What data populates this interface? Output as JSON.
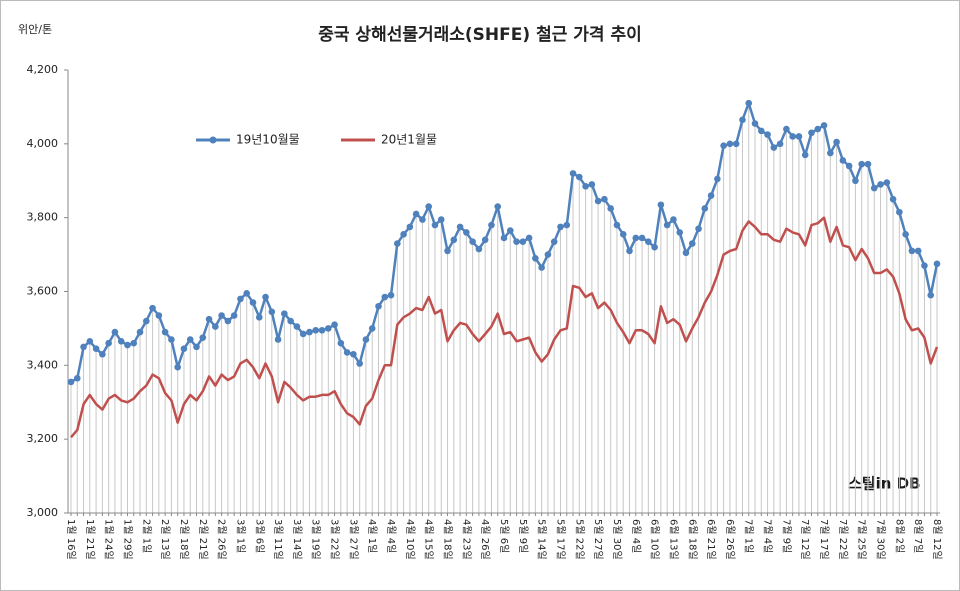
{
  "chart_data": {
    "type": "line",
    "title": "중국 상해선물거래소(SHFE) 철근 가격 추이",
    "y_axis_label": "위안/톤",
    "watermark": "스틸in DB",
    "ylim": [
      3000,
      4200
    ],
    "yticks": [
      {
        "value": 3000,
        "label": "3,000"
      },
      {
        "value": 3200,
        "label": "3,200"
      },
      {
        "value": 3400,
        "label": "3,400"
      },
      {
        "value": 3600,
        "label": "3,600"
      },
      {
        "value": 3800,
        "label": "3,800"
      },
      {
        "value": 4000,
        "label": "4,000"
      },
      {
        "value": 4200,
        "label": "4,200"
      }
    ],
    "drop_lines": true,
    "categories": [
      "1월 16일",
      null,
      null,
      "1월 21일",
      null,
      null,
      "1월 24일",
      null,
      null,
      "1월 29일",
      null,
      null,
      "2월 1일",
      null,
      null,
      "2월 13일",
      null,
      null,
      "2월 18일",
      null,
      null,
      "2월 21일",
      null,
      null,
      "2월 26일",
      null,
      null,
      "3월 1일",
      null,
      null,
      "3월 6일",
      null,
      null,
      "3월 11일",
      null,
      null,
      "3월 14일",
      null,
      null,
      "3월 19일",
      null,
      null,
      "3월 22일",
      null,
      null,
      "3월 27일",
      null,
      null,
      "4월 1일",
      null,
      null,
      "4월 4일",
      null,
      null,
      "4월 10일",
      null,
      null,
      "4월 15일",
      null,
      null,
      "4월 18일",
      null,
      null,
      "4월 23일",
      null,
      null,
      "4월 26일",
      null,
      null,
      "5월 6일",
      null,
      null,
      "5월 9일",
      null,
      null,
      "5월 14일",
      null,
      null,
      "5월 17일",
      null,
      null,
      "5월 22일",
      null,
      null,
      "5월 27일",
      null,
      null,
      "5월 30일",
      null,
      null,
      "6월 4일",
      null,
      null,
      "6월 10일",
      null,
      null,
      "6월 13일",
      null,
      null,
      "6월 18일",
      null,
      null,
      "6월 21일",
      null,
      null,
      "6월 26일",
      null,
      null,
      "7월 1일",
      null,
      null,
      "7월 4일",
      null,
      null,
      "7월 9일",
      null,
      null,
      "7월 12일",
      null,
      null,
      "7월 17일",
      null,
      null,
      "7월 22일",
      null,
      null,
      "7월 25일",
      null,
      null,
      "7월 30일",
      null,
      null,
      "8월 2일",
      null,
      null,
      "8월 7일",
      null,
      null,
      "8월 12일"
    ],
    "series": [
      {
        "name": "19년10월물",
        "color": "#4f81bd",
        "markers": true,
        "values": [
          3355,
          3365,
          3450,
          3465,
          3445,
          3430,
          3460,
          3490,
          3465,
          3455,
          3460,
          3490,
          3520,
          3555,
          3535,
          3490,
          3470,
          3395,
          3445,
          3470,
          3450,
          3475,
          3525,
          3505,
          3535,
          3520,
          3535,
          3580,
          3595,
          3570,
          3530,
          3585,
          3545,
          3470,
          3540,
          3520,
          3505,
          3485,
          3490,
          3495,
          3495,
          3500,
          3510,
          3460,
          3435,
          3430,
          3405,
          3470,
          3500,
          3560,
          3585,
          3590,
          3730,
          3755,
          3775,
          3810,
          3795,
          3830,
          3780,
          3795,
          3710,
          3740,
          3775,
          3760,
          3735,
          3715,
          3740,
          3780,
          3830,
          3745,
          3765,
          3735,
          3735,
          3745,
          3690,
          3665,
          3700,
          3735,
          3775,
          3780,
          3920,
          3910,
          3885,
          3890,
          3845,
          3850,
          3825,
          3780,
          3755,
          3710,
          3745,
          3745,
          3735,
          3720,
          3835,
          3780,
          3795,
          3760,
          3705,
          3730,
          3770,
          3825,
          3860,
          3905,
          3995,
          4000,
          4000,
          4065,
          4110,
          4055,
          4035,
          4025,
          3990,
          4000,
          4040,
          4020,
          4020,
          3970,
          4030,
          4040,
          4050,
          3975,
          4005,
          3955,
          3940,
          3900,
          3945,
          3945,
          3880,
          3890,
          3895,
          3850,
          3815,
          3755,
          3710,
          3710,
          3670,
          3590,
          3675
        ]
      },
      {
        "name": "20년1월물",
        "color": "#c0504d",
        "markers": false,
        "values": [
          3205,
          3225,
          3295,
          3320,
          3295,
          3280,
          3310,
          3320,
          3305,
          3300,
          3310,
          3330,
          3345,
          3375,
          3365,
          3325,
          3305,
          3245,
          3295,
          3320,
          3305,
          3330,
          3370,
          3345,
          3375,
          3360,
          3370,
          3405,
          3415,
          3395,
          3365,
          3405,
          3370,
          3300,
          3355,
          3340,
          3320,
          3305,
          3315,
          3315,
          3320,
          3320,
          3330,
          3295,
          3270,
          3260,
          3240,
          3290,
          3310,
          3360,
          3400,
          3400,
          3510,
          3530,
          3540,
          3555,
          3550,
          3585,
          3540,
          3550,
          3465,
          3495,
          3515,
          3510,
          3485,
          3465,
          3485,
          3505,
          3540,
          3485,
          3490,
          3465,
          3470,
          3475,
          3435,
          3410,
          3430,
          3470,
          3495,
          3500,
          3615,
          3610,
          3585,
          3595,
          3555,
          3570,
          3550,
          3515,
          3490,
          3460,
          3495,
          3495,
          3485,
          3460,
          3560,
          3515,
          3525,
          3510,
          3465,
          3500,
          3530,
          3570,
          3600,
          3645,
          3700,
          3710,
          3715,
          3765,
          3790,
          3775,
          3755,
          3755,
          3740,
          3735,
          3770,
          3760,
          3755,
          3725,
          3780,
          3785,
          3800,
          3735,
          3775,
          3725,
          3720,
          3685,
          3715,
          3690,
          3650,
          3650,
          3660,
          3640,
          3595,
          3525,
          3495,
          3500,
          3475,
          3405,
          3450
        ]
      }
    ]
  }
}
